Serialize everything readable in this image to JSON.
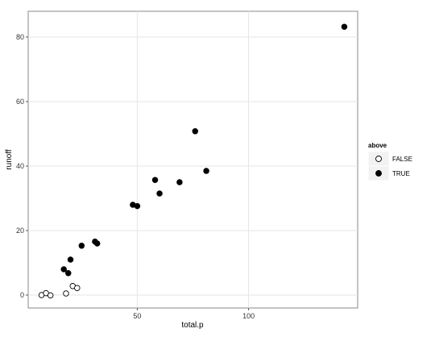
{
  "chart_data": {
    "type": "scatter",
    "title": "",
    "xlabel": "total.p",
    "ylabel": "runoff",
    "xlim": [
      1,
      149
    ],
    "ylim": [
      -4,
      88
    ],
    "x_ticks": [
      50,
      100
    ],
    "y_ticks": [
      0,
      20,
      40,
      60,
      80
    ],
    "grid": true,
    "legend": {
      "title": "above",
      "position": "right"
    },
    "series": [
      {
        "name": "FALSE",
        "marker": "open-circle",
        "points": [
          {
            "x": 7,
            "y": 0.0
          },
          {
            "x": 9,
            "y": 0.6
          },
          {
            "x": 11,
            "y": -0.1
          },
          {
            "x": 18,
            "y": 0.5
          },
          {
            "x": 21,
            "y": 2.8
          },
          {
            "x": 23,
            "y": 2.2
          }
        ]
      },
      {
        "name": "TRUE",
        "marker": "filled-circle",
        "points": [
          {
            "x": 17,
            "y": 8.0
          },
          {
            "x": 19,
            "y": 6.8
          },
          {
            "x": 20,
            "y": 11.0
          },
          {
            "x": 25,
            "y": 15.3
          },
          {
            "x": 31,
            "y": 16.6
          },
          {
            "x": 32,
            "y": 16.0
          },
          {
            "x": 48,
            "y": 28.0
          },
          {
            "x": 50,
            "y": 27.6
          },
          {
            "x": 58,
            "y": 35.7
          },
          {
            "x": 60,
            "y": 31.5
          },
          {
            "x": 69,
            "y": 35.0
          },
          {
            "x": 76,
            "y": 50.8
          },
          {
            "x": 81,
            "y": 38.5
          },
          {
            "x": 143,
            "y": 83.2
          }
        ]
      }
    ]
  },
  "colors": {
    "panel_border": "#888888",
    "grid": "#e6e6e6",
    "point": "#000000"
  }
}
